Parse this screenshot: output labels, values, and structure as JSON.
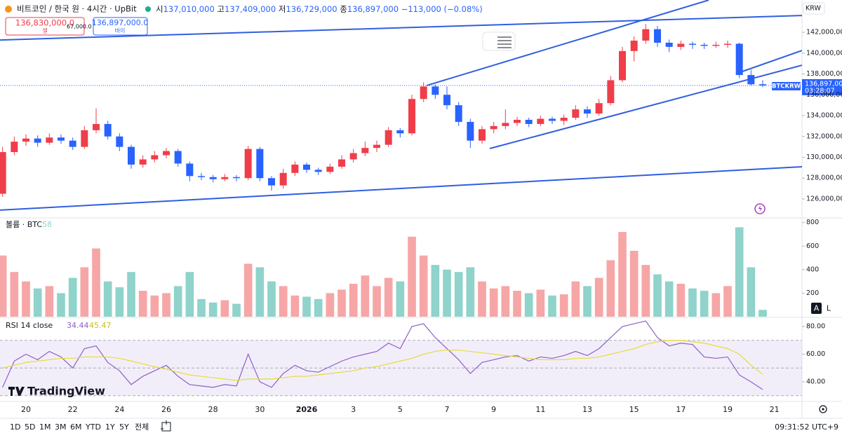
{
  "header": {
    "symbol": "비트코인 / 한국 원 · 4시간 · UpBit",
    "ohlc_labels": [
      "시",
      "고",
      "저",
      "종"
    ],
    "ohlc_text": [
      "137,010,000",
      "137,409,000",
      "136,729,000",
      "136,897,000"
    ],
    "change_text": "−113,000 (−0.08%)"
  },
  "trade_panel": {
    "sell_price": "136,830,000.0",
    "sell_label": "셀",
    "spread": "67,000.0",
    "buy_price": "136,897,000.0",
    "buy_label": "바이"
  },
  "chart_data": [
    {
      "type": "candlestick",
      "currency": "KRW",
      "symbol_tag": "BTCKRW",
      "countdown": "03:28:07",
      "x": [
        -1,
        -0.5,
        0,
        0.5,
        1,
        1.5,
        2,
        2.5,
        3,
        3.5,
        4,
        4.5,
        5,
        5.5,
        6,
        6.5,
        7,
        7.5,
        8,
        8.5,
        9,
        9.5,
        10,
        10.5,
        11,
        11.5,
        12,
        12.5,
        13,
        13.5,
        14,
        14.5,
        15,
        15.5,
        16,
        16.5,
        17,
        17.5,
        18,
        18.5,
        19,
        19.5,
        20,
        20.5,
        21,
        21.5,
        22,
        22.5,
        23,
        23.5,
        24,
        24.5,
        25,
        25.5,
        26,
        26.5,
        27,
        27.5,
        28,
        28.5,
        29,
        29.5,
        30,
        30.5,
        31,
        31.5
      ],
      "open": [
        126500000,
        130500000,
        131500000,
        131800000,
        131400000,
        131900000,
        131600000,
        131000000,
        132600000,
        133200000,
        132000000,
        131000000,
        129300000,
        129800000,
        130200000,
        130600000,
        129400000,
        128200000,
        128100000,
        127900000,
        128100000,
        128000000,
        130800000,
        128000000,
        127300000,
        128500000,
        129300000,
        128800000,
        128600000,
        129100000,
        129800000,
        130400000,
        130900000,
        131200000,
        132600000,
        132300000,
        135600000,
        136800000,
        136000000,
        135000000,
        133400000,
        131600000,
        132700000,
        133000000,
        133300000,
        133600000,
        133200000,
        133700000,
        133500000,
        133800000,
        134600000,
        134200000,
        135200000,
        137400000,
        140200000,
        141200000,
        142300000,
        141000000,
        140600000,
        140900000,
        140800000,
        140700000,
        140800000,
        140900000,
        137900000,
        137010000
      ],
      "high": [
        131000000,
        132000000,
        132200000,
        132100000,
        132300000,
        132200000,
        131900000,
        133000000,
        134700000,
        133500000,
        132300000,
        131200000,
        130200000,
        130600000,
        130900000,
        130800000,
        129600000,
        128500000,
        128300000,
        128400000,
        128300000,
        131100000,
        131000000,
        128200000,
        128900000,
        129600000,
        129500000,
        129000000,
        129400000,
        130200000,
        130800000,
        131500000,
        131600000,
        132900000,
        132800000,
        136000000,
        137200000,
        137000000,
        136800000,
        135300000,
        133700000,
        133000000,
        133400000,
        134600000,
        133900000,
        133800000,
        134000000,
        133900000,
        134100000,
        135000000,
        134900000,
        135600000,
        137800000,
        140600000,
        141600000,
        142800000,
        142600000,
        141300000,
        141200000,
        141100000,
        141000000,
        141100000,
        141200000,
        141000000,
        138400000,
        137409000
      ],
      "low": [
        126200000,
        130200000,
        131100000,
        131000000,
        131200000,
        131300000,
        130700000,
        130800000,
        132300000,
        131700000,
        130600000,
        128900000,
        129000000,
        129500000,
        129900000,
        129100000,
        127700000,
        127800000,
        127600000,
        127700000,
        127700000,
        127800000,
        127700000,
        126800000,
        127000000,
        128200000,
        128500000,
        128300000,
        128400000,
        128900000,
        129500000,
        130100000,
        130500000,
        131000000,
        131900000,
        132100000,
        135300000,
        135600000,
        134600000,
        133000000,
        130900000,
        131300000,
        132300000,
        132700000,
        133000000,
        132900000,
        133000000,
        133200000,
        133100000,
        133600000,
        133800000,
        134000000,
        135000000,
        137200000,
        139200000,
        140900000,
        140600000,
        140100000,
        140300000,
        140400000,
        140400000,
        140500000,
        140500000,
        137600000,
        136900000,
        136729000
      ],
      "close": [
        130500000,
        131500000,
        131800000,
        131400000,
        131900000,
        131600000,
        131000000,
        132600000,
        133200000,
        132000000,
        131000000,
        129300000,
        129800000,
        130200000,
        130600000,
        129400000,
        128200000,
        128100000,
        127900000,
        128100000,
        128000000,
        130800000,
        128000000,
        127300000,
        128500000,
        129300000,
        128800000,
        128600000,
        129100000,
        129800000,
        130400000,
        130900000,
        131200000,
        132600000,
        132300000,
        135600000,
        136800000,
        136000000,
        135000000,
        133400000,
        131600000,
        132700000,
        133000000,
        133300000,
        133600000,
        133200000,
        133700000,
        133500000,
        133800000,
        134600000,
        134200000,
        135200000,
        137400000,
        140200000,
        141200000,
        142300000,
        141000000,
        140600000,
        140900000,
        140800000,
        140700000,
        140800000,
        140900000,
        137900000,
        137010000,
        136897000
      ],
      "colors": {
        "up": "#ef3d4a",
        "down": "#2962ff"
      },
      "xlim": [
        -1.11,
        33.18
      ],
      "xticks": [
        {
          "value": 0,
          "label": "20"
        },
        {
          "value": 2,
          "label": "22"
        },
        {
          "value": 4,
          "label": "24"
        },
        {
          "value": 6,
          "label": "26"
        },
        {
          "value": 8,
          "label": "28"
        },
        {
          "value": 10,
          "label": "30"
        },
        {
          "value": 12,
          "label": "2026"
        },
        {
          "value": 14,
          "label": "3"
        },
        {
          "value": 16,
          "label": "5"
        },
        {
          "value": 18,
          "label": "7"
        },
        {
          "value": 20,
          "label": "9"
        },
        {
          "value": 22,
          "label": "11"
        },
        {
          "value": 24,
          "label": "13"
        },
        {
          "value": 26,
          "label": "15"
        },
        {
          "value": 28,
          "label": "17"
        },
        {
          "value": 30,
          "label": "19"
        },
        {
          "value": 32,
          "label": "21"
        }
      ],
      "ylim": [
        124250000,
        145100000
      ],
      "yticks": [
        {
          "value": 126000000,
          "label": "126,000,000"
        },
        {
          "value": 128000000,
          "label": "128,000,000"
        },
        {
          "value": 130000000,
          "label": "130,000,000"
        },
        {
          "value": 132000000,
          "label": "132,000,000"
        },
        {
          "value": 134000000,
          "label": "134,000,000"
        },
        {
          "value": 136000000,
          "label": "136,000,000"
        },
        {
          "value": 138000000,
          "label": "138,000,000"
        },
        {
          "value": 140000000,
          "label": "140,000,000"
        },
        {
          "value": 142000000,
          "label": "142,000,000"
        }
      ],
      "last_price": {
        "value": 136897000,
        "label": "136,897,000"
      },
      "trendline_color": "#2f5fe0",
      "trendlines": [
        {
          "x": [
            -1.11,
            33.18
          ],
          "y": [
            141260000,
            143610000
          ]
        },
        {
          "x": [
            -1.11,
            33.18
          ],
          "y": [
            124930000,
            129090000
          ]
        },
        {
          "x": [
            17.13,
            29.19
          ],
          "y": [
            136890000,
            145090000
          ]
        },
        {
          "x": [
            19.83,
            33.18
          ],
          "y": [
            130840000,
            138840000
          ]
        },
        {
          "x": [
            30.63,
            33.18
          ],
          "y": [
            138240000,
            140250000
          ]
        }
      ]
    },
    {
      "type": "bar",
      "title": "볼륨 · BTC",
      "colors": {
        "up": "#f6a6a6",
        "down": "#8fd3cb"
      },
      "values": [
        520,
        380,
        300,
        240,
        260,
        200,
        330,
        420,
        580,
        300,
        250,
        380,
        220,
        180,
        200,
        260,
        380,
        150,
        120,
        140,
        110,
        450,
        420,
        300,
        260,
        180,
        170,
        150,
        200,
        230,
        280,
        350,
        260,
        330,
        300,
        680,
        520,
        440,
        400,
        380,
        420,
        300,
        240,
        260,
        220,
        200,
        230,
        180,
        190,
        300,
        260,
        330,
        480,
        720,
        560,
        440,
        360,
        300,
        280,
        240,
        220,
        200,
        260,
        760,
        420,
        58
      ],
      "ylim": [
        0,
        810
      ],
      "yticks": [
        200,
        400,
        600,
        800
      ]
    },
    {
      "type": "line",
      "title": "RSI 14 close",
      "series": [
        {
          "color": "#8e5fc9",
          "values": [
            36,
            55,
            60,
            56,
            62,
            58,
            50,
            64,
            66,
            54,
            48,
            38,
            44,
            48,
            52,
            44,
            38,
            37,
            36,
            38,
            37,
            60,
            40,
            36,
            46,
            52,
            48,
            47,
            51,
            55,
            58,
            60,
            62,
            68,
            64,
            80,
            82,
            72,
            64,
            56,
            46,
            54,
            56,
            58,
            59,
            55,
            58,
            57,
            59,
            62,
            59,
            64,
            72,
            80,
            82,
            84,
            72,
            66,
            68,
            67,
            58,
            57,
            58,
            45,
            40,
            34.44
          ]
        },
        {
          "color": "#e6dc3a",
          "values": [
            50,
            52,
            54,
            55,
            56,
            57,
            57,
            58,
            58,
            58,
            57,
            55,
            53,
            51,
            49,
            47,
            45,
            44,
            43,
            42,
            41,
            42,
            42,
            42,
            43,
            44,
            44,
            45,
            46,
            47,
            48,
            50,
            51,
            53,
            55,
            57,
            60,
            62,
            63,
            63,
            62,
            61,
            60,
            59,
            58,
            57,
            56,
            56,
            56,
            57,
            57,
            58,
            60,
            62,
            64,
            67,
            69,
            70,
            70,
            69,
            68,
            66,
            64,
            60,
            52,
            45.47
          ]
        }
      ],
      "bands": [
        70,
        50,
        30
      ],
      "ylim": [
        26.3,
        85.6
      ],
      "yticks": [
        {
          "value": 40,
          "label": "40.00"
        },
        {
          "value": 60,
          "label": "60.00"
        },
        {
          "value": 80,
          "label": "80.00"
        }
      ]
    }
  ],
  "toolbar": {
    "ranges": [
      "1D",
      "5D",
      "1M",
      "3M",
      "6M",
      "YTD",
      "1Y",
      "5Y",
      "전체"
    ],
    "clock": "09:31:52 UTC+9",
    "scale_buttons": [
      "A",
      "L"
    ],
    "logo": "TradingView"
  }
}
